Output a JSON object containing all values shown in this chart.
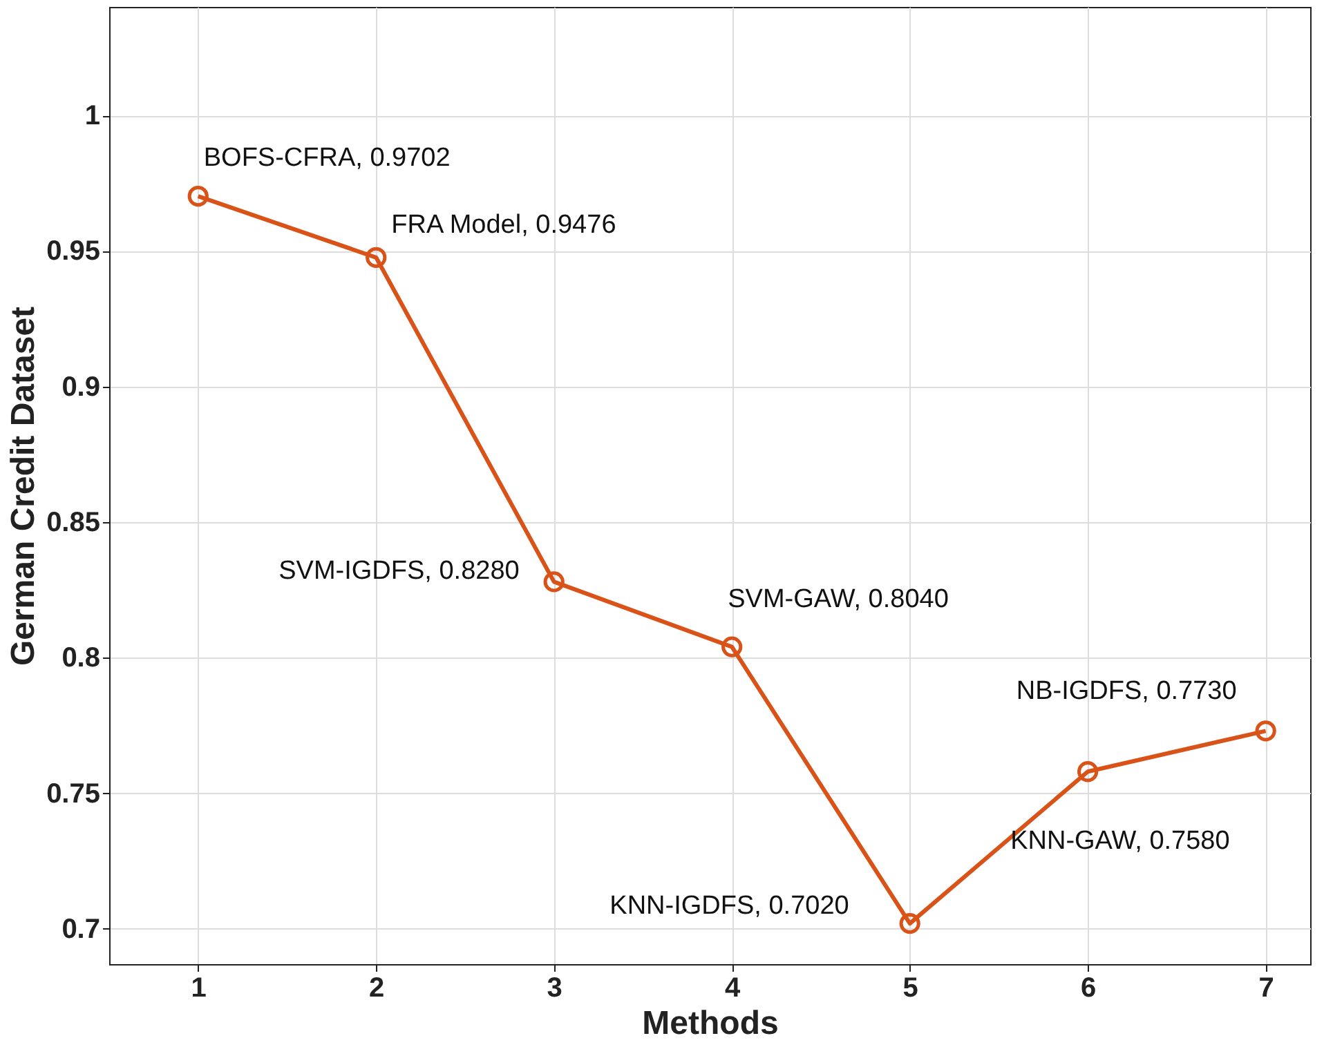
{
  "chart_data": {
    "type": "line",
    "xlabel": "Methods",
    "ylabel": "German Credit Dataset",
    "x": [
      1,
      2,
      3,
      4,
      5,
      6,
      7
    ],
    "series": [
      {
        "color": "#d95319",
        "values": [
          0.9702,
          0.9476,
          0.828,
          0.804,
          0.702,
          0.758,
          0.773
        ]
      }
    ],
    "xlim": [
      0.5,
      7.25
    ],
    "xticks": [
      1,
      2,
      3,
      4,
      5,
      6,
      7
    ],
    "ylim": [
      0.687,
      1.04
    ],
    "yticks": [
      0.7,
      0.75,
      0.8,
      0.85,
      0.9,
      0.95,
      1
    ],
    "grid": true,
    "marker": "circle",
    "line_style": "solid",
    "annotations": [
      {
        "text": "BOFS-CFRA, 0.9702",
        "x": 1,
        "y": 0.9702
      },
      {
        "text": "FRA Model, 0.9476",
        "x": 2,
        "y": 0.9476
      },
      {
        "text": "SVM-IGDFS, 0.8280",
        "x": 3,
        "y": 0.828
      },
      {
        "text": "SVM-GAW, 0.8040",
        "x": 4,
        "y": 0.804
      },
      {
        "text": "KNN-IGDFS, 0.7020",
        "x": 5,
        "y": 0.702
      },
      {
        "text": "KNN-GAW, 0.7580",
        "x": 6,
        "y": 0.758
      },
      {
        "text": "NB-IGDFS, 0.7730",
        "x": 7,
        "y": 0.773
      }
    ]
  }
}
